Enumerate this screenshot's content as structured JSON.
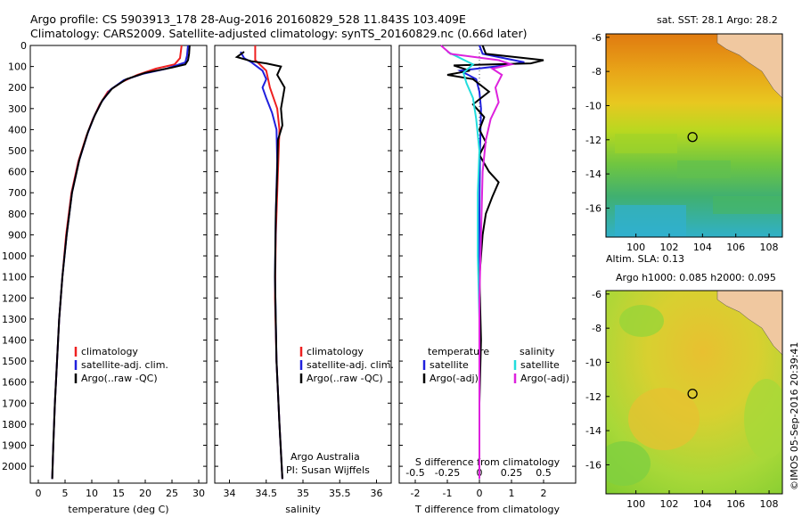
{
  "header": {
    "line1": "Argo profile: CS 5903913_178 28-Aug-2016 20160829_528 11.843S 103.409E",
    "line2": "Climatology: CARS2009. Satellite-adjusted climatology: synTS_20160829.nc (0.66d later)"
  },
  "timestamp": "©IMOS 05-Sep-2016 20:39:41",
  "credit": {
    "line1": "Argo Australia",
    "line2": "PI: Susan Wijffels"
  },
  "colors": {
    "climatology": "#ee2020",
    "satellite": "#2020dd",
    "argo": "#000000",
    "sat_s": "#22dddd",
    "argo_s": "#dd22dd"
  },
  "chart_data": [
    {
      "type": "line",
      "id": "temperature",
      "xlabel": "temperature (deg C)",
      "xlim": [
        -1.5,
        31.5
      ],
      "ylim": [
        0,
        2080
      ],
      "xticks": [
        0,
        5,
        10,
        15,
        20,
        25,
        30
      ],
      "yticks": [
        0,
        100,
        200,
        300,
        400,
        500,
        600,
        700,
        800,
        900,
        1000,
        1100,
        1200,
        1300,
        1400,
        1500,
        1600,
        1700,
        1800,
        1900,
        2000
      ],
      "legend": [
        "climatology",
        "satellite-adj. clim.",
        "Argo(..raw -QC)"
      ],
      "series": [
        {
          "name": "climatology",
          "color": "#ee2020",
          "points": [
            [
              26.8,
              0
            ],
            [
              26.5,
              60
            ],
            [
              25.5,
              90
            ],
            [
              22,
              110
            ],
            [
              18.5,
              140
            ],
            [
              15.5,
              175
            ],
            [
              13,
              220
            ],
            [
              11.5,
              280
            ],
            [
              10.2,
              350
            ],
            [
              9,
              430
            ],
            [
              7.5,
              550
            ],
            [
              6.2,
              700
            ],
            [
              5.2,
              900
            ],
            [
              4.5,
              1100
            ],
            [
              3.9,
              1300
            ],
            [
              3.5,
              1500
            ],
            [
              3.1,
              1700
            ],
            [
              2.8,
              1900
            ],
            [
              2.6,
              2060
            ]
          ]
        },
        {
          "name": "satellite-adj. clim.",
          "color": "#2020dd",
          "points": [
            [
              28,
              0
            ],
            [
              27.8,
              50
            ],
            [
              27.5,
              80
            ],
            [
              24,
              110
            ],
            [
              19.5,
              135
            ],
            [
              16,
              165
            ],
            [
              13.5,
              210
            ],
            [
              11.8,
              270
            ],
            [
              10.4,
              340
            ],
            [
              9.2,
              420
            ],
            [
              7.6,
              550
            ],
            [
              6.3,
              700
            ],
            [
              5.3,
              900
            ],
            [
              4.5,
              1100
            ],
            [
              3.9,
              1300
            ],
            [
              3.5,
              1500
            ],
            [
              3.1,
              1700
            ],
            [
              2.8,
              1900
            ],
            [
              2.6,
              2060
            ]
          ]
        },
        {
          "name": "Argo(..raw -QC)",
          "color": "#000000",
          "points": [
            [
              28.3,
              0
            ],
            [
              28.2,
              40
            ],
            [
              28,
              70
            ],
            [
              27.5,
              90
            ],
            [
              25,
              105
            ],
            [
              20,
              130
            ],
            [
              16.5,
              160
            ],
            [
              13.8,
              205
            ],
            [
              12,
              260
            ],
            [
              10.6,
              330
            ],
            [
              9.3,
              410
            ],
            [
              7.7,
              540
            ],
            [
              6.3,
              700
            ],
            [
              5.3,
              900
            ],
            [
              4.5,
              1100
            ],
            [
              3.9,
              1300
            ],
            [
              3.5,
              1500
            ],
            [
              3.1,
              1700
            ],
            [
              2.8,
              1900
            ],
            [
              2.6,
              2060
            ]
          ]
        }
      ]
    },
    {
      "type": "line",
      "id": "salinity",
      "xlabel": "salinity",
      "xlim": [
        33.8,
        36.2
      ],
      "ylim": [
        0,
        2080
      ],
      "xticks": [
        34,
        34.5,
        35,
        35.5,
        36
      ],
      "legend": [
        "climatology",
        "satellite-adj. clim.",
        "Argo(..raw -QC)"
      ],
      "series": [
        {
          "name": "climatology",
          "color": "#ee2020",
          "points": [
            [
              34.35,
              0
            ],
            [
              34.35,
              70
            ],
            [
              34.5,
              120
            ],
            [
              34.55,
              200
            ],
            [
              34.65,
              300
            ],
            [
              34.68,
              400
            ],
            [
              34.66,
              600
            ],
            [
              34.63,
              900
            ],
            [
              34.62,
              1200
            ],
            [
              34.64,
              1500
            ],
            [
              34.68,
              1800
            ],
            [
              34.72,
              2060
            ]
          ]
        },
        {
          "name": "satellite-adj. clim.",
          "color": "#2020dd",
          "points": [
            [
              34.15,
              30
            ],
            [
              34.2,
              60
            ],
            [
              34.3,
              80
            ],
            [
              34.45,
              120
            ],
            [
              34.5,
              160
            ],
            [
              34.45,
              200
            ],
            [
              34.5,
              250
            ],
            [
              34.58,
              320
            ],
            [
              34.64,
              400
            ],
            [
              34.65,
              550
            ],
            [
              34.63,
              800
            ],
            [
              34.62,
              1100
            ],
            [
              34.64,
              1500
            ],
            [
              34.68,
              1800
            ],
            [
              34.72,
              2060
            ]
          ]
        },
        {
          "name": "Argo(..raw -QC)",
          "color": "#000000",
          "points": [
            [
              34.2,
              30
            ],
            [
              34.1,
              55
            ],
            [
              34.3,
              75
            ],
            [
              34.5,
              85
            ],
            [
              34.7,
              100
            ],
            [
              34.65,
              140
            ],
            [
              34.75,
              200
            ],
            [
              34.7,
              300
            ],
            [
              34.72,
              380
            ],
            [
              34.66,
              450
            ],
            [
              34.65,
              600
            ],
            [
              34.63,
              800
            ],
            [
              34.62,
              1100
            ],
            [
              34.64,
              1500
            ],
            [
              34.68,
              1800
            ],
            [
              34.72,
              2060
            ]
          ]
        }
      ]
    },
    {
      "type": "line",
      "id": "differences",
      "xlabel": "T difference from climatology",
      "x2label": "S difference from climatology",
      "xlim": [
        -2.5,
        3.0
      ],
      "ylim": [
        0,
        2080
      ],
      "xticks": [
        -2,
        -1,
        0,
        1,
        2
      ],
      "x2ticks": [
        {
          "label": "-0.5",
          "x": -2
        },
        {
          "label": "-0.25",
          "x": -1
        },
        {
          "label": "0",
          "x": 0
        },
        {
          "label": "0.25",
          "x": 1
        },
        {
          "label": "0.5",
          "x": 2
        }
      ],
      "legend": [
        "satellite",
        "Argo(-adj)",
        "satellite",
        "Argo(-adj)"
      ],
      "legend_headers": [
        "temperature",
        "salinity"
      ],
      "series": [
        {
          "name": "temperature satellite",
          "color": "#2020dd",
          "points": [
            [
              0,
              0
            ],
            [
              0.1,
              40
            ],
            [
              1.4,
              80
            ],
            [
              0.5,
              100
            ],
            [
              -0.6,
              120
            ],
            [
              -0.1,
              160
            ],
            [
              0,
              220
            ],
            [
              0.05,
              300
            ],
            [
              0.02,
              500
            ],
            [
              0,
              800
            ],
            [
              0,
              1200
            ],
            [
              0,
              2060
            ]
          ]
        },
        {
          "name": "temperature Argo(-adj)",
          "color": "#000000",
          "points": [
            [
              0.1,
              0
            ],
            [
              0.2,
              40
            ],
            [
              2.0,
              70
            ],
            [
              1.6,
              85
            ],
            [
              -0.8,
              95
            ],
            [
              -0.3,
              120
            ],
            [
              -1.0,
              140
            ],
            [
              -0.2,
              160
            ],
            [
              0.3,
              220
            ],
            [
              -0.2,
              280
            ],
            [
              0.15,
              340
            ],
            [
              0,
              400
            ],
            [
              0.2,
              460
            ],
            [
              0,
              520
            ],
            [
              0.3,
              600
            ],
            [
              0.6,
              650
            ],
            [
              0.4,
              720
            ],
            [
              0.2,
              800
            ],
            [
              0.1,
              900
            ],
            [
              0,
              1100
            ],
            [
              0.05,
              1400
            ],
            [
              0,
              1700
            ],
            [
              0,
              2060
            ]
          ]
        },
        {
          "name": "salinity satellite",
          "color": "#22dddd",
          "points": [
            [
              -1,
              30
            ],
            [
              -0.2,
              90
            ],
            [
              -0.5,
              130
            ],
            [
              -0.4,
              180
            ],
            [
              -0.2,
              250
            ],
            [
              -0.1,
              350
            ],
            [
              0,
              500
            ],
            [
              -0.05,
              700
            ],
            [
              -0.05,
              1000
            ],
            [
              0,
              1300
            ],
            [
              0,
              2060
            ]
          ]
        },
        {
          "name": "salinity Argo(-adj)",
          "color": "#dd22dd",
          "points": [
            [
              -1.2,
              0
            ],
            [
              -0.9,
              40
            ],
            [
              0.6,
              70
            ],
            [
              1.0,
              90
            ],
            [
              0.4,
              110
            ],
            [
              0.7,
              140
            ],
            [
              0.5,
              200
            ],
            [
              0.6,
              270
            ],
            [
              0.35,
              350
            ],
            [
              0.2,
              450
            ],
            [
              0.1,
              600
            ],
            [
              0.05,
              900
            ],
            [
              0,
              1200
            ],
            [
              0,
              2060
            ]
          ]
        }
      ]
    },
    {
      "type": "heatmap",
      "id": "sst-map",
      "title": "sat. SST: 28.1  Argo: 28.2",
      "xlim": [
        98.2,
        108.8
      ],
      "ylim": [
        -17.7,
        -5.8
      ],
      "xticks": [
        100,
        102,
        104,
        106,
        108
      ],
      "yticks": [
        -6,
        -8,
        -10,
        -12,
        -14,
        -16
      ],
      "argo_position": [
        103.4,
        -11.84
      ]
    },
    {
      "type": "heatmap",
      "id": "sla-map",
      "title": "Altim. SLA: 0.13",
      "subtitle": "Argo h1000: 0.085  h2000: 0.095",
      "xlim": [
        98.2,
        108.8
      ],
      "ylim": [
        -17.7,
        -5.8
      ],
      "xticks": [
        100,
        102,
        104,
        106,
        108
      ],
      "yticks": [
        -6,
        -8,
        -10,
        -12,
        -14,
        -16
      ],
      "argo_position": [
        103.4,
        -11.84
      ]
    }
  ]
}
